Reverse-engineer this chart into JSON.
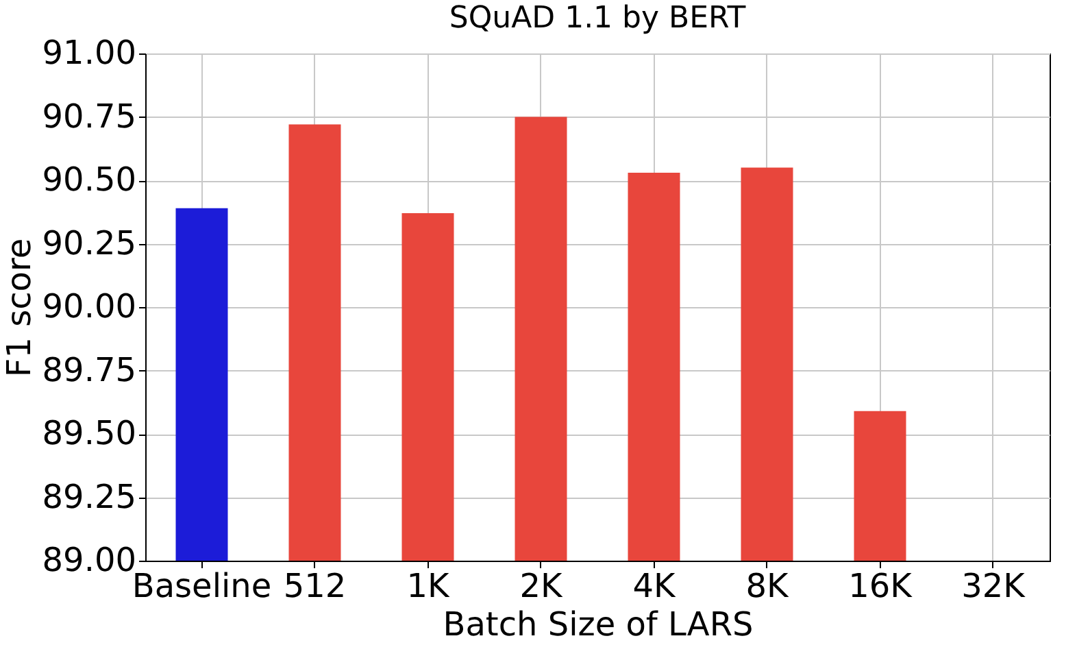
{
  "chart_data": {
    "type": "bar",
    "title": "SQuAD 1.1 by BERT",
    "xlabel": "Batch Size of LARS",
    "ylabel": "F1 score",
    "categories": [
      "Baseline",
      "512",
      "1K",
      "2K",
      "4K",
      "8K",
      "16K",
      "32K"
    ],
    "values": [
      90.39,
      90.72,
      90.37,
      90.75,
      90.53,
      90.55,
      89.59,
      null
    ],
    "colors": [
      "#1c1cd8",
      "#e8463c",
      "#e8463c",
      "#e8463c",
      "#e8463c",
      "#e8463c",
      "#e8463c",
      "#e8463c"
    ],
    "ylim": [
      89,
      91
    ],
    "yticks": [
      {
        "value": 89,
        "label": "89.00"
      },
      {
        "value": 89.25,
        "label": "89.25"
      },
      {
        "value": 89.5,
        "label": "89.50"
      },
      {
        "value": 89.75,
        "label": "89.75"
      },
      {
        "value": 90,
        "label": "90.00"
      },
      {
        "value": 90.25,
        "label": "90.25"
      },
      {
        "value": 90.5,
        "label": "90.50"
      },
      {
        "value": 90.75,
        "label": "90.75"
      },
      {
        "value": 91,
        "label": "91.00"
      }
    ],
    "grid": true
  }
}
